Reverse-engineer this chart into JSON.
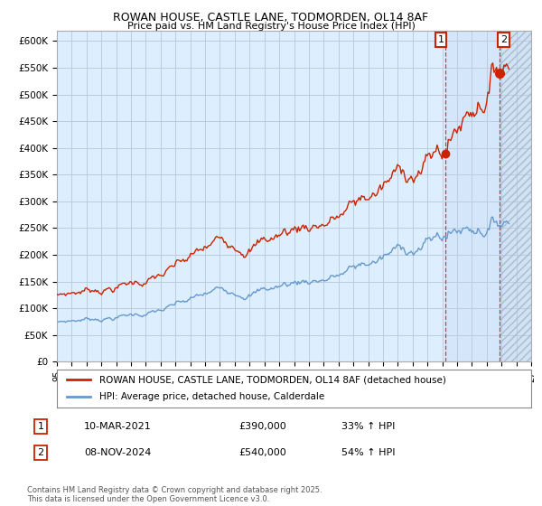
{
  "title1": "ROWAN HOUSE, CASTLE LANE, TODMORDEN, OL14 8AF",
  "title2": "Price paid vs. HM Land Registry's House Price Index (HPI)",
  "ylim": [
    0,
    620000
  ],
  "yticks": [
    0,
    50000,
    100000,
    150000,
    200000,
    250000,
    300000,
    350000,
    400000,
    450000,
    500000,
    550000,
    600000
  ],
  "ytick_labels": [
    "£0",
    "£50K",
    "£100K",
    "£150K",
    "£200K",
    "£250K",
    "£300K",
    "£350K",
    "£400K",
    "£450K",
    "£500K",
    "£550K",
    "£600K"
  ],
  "xlim_start": 1995.0,
  "xlim_end": 2027.0,
  "sale1_date": 2021.19,
  "sale1_price": 390000,
  "sale1_label": "1",
  "sale2_date": 2024.86,
  "sale2_price": 540000,
  "sale2_label": "2",
  "red_line_color": "#cc2200",
  "blue_line_color": "#6699cc",
  "background_color": "#ffffff",
  "plot_bg_color": "#ddeeff",
  "grid_color": "#bbccdd",
  "legend_line1": "ROWAN HOUSE, CASTLE LANE, TODMORDEN, OL14 8AF (detached house)",
  "legend_line2": "HPI: Average price, detached house, Calderdale",
  "annotation1_date": "10-MAR-2021",
  "annotation1_price": "£390,000",
  "annotation1_hpi": "33% ↑ HPI",
  "annotation2_date": "08-NOV-2024",
  "annotation2_price": "£540,000",
  "annotation2_hpi": "54% ↑ HPI",
  "footer": "Contains HM Land Registry data © Crown copyright and database right 2025.\nThis data is licensed under the Open Government Licence v3.0."
}
